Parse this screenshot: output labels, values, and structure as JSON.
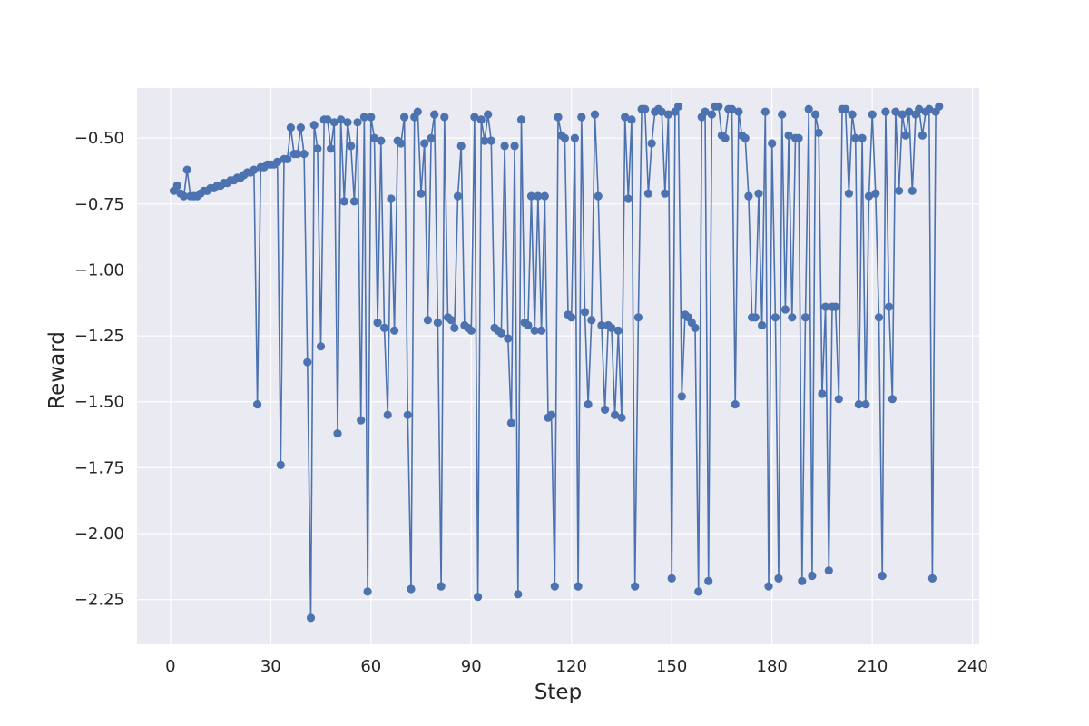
{
  "chart_data": {
    "type": "line",
    "title": "",
    "xlabel": "Step",
    "ylabel": "Reward",
    "xlim": [
      -10,
      242
    ],
    "ylim": [
      -2.42,
      -0.31
    ],
    "xticks": [
      0,
      30,
      60,
      90,
      120,
      150,
      180,
      210,
      240
    ],
    "yticks": [
      -2.25,
      -2.0,
      -1.75,
      -1.5,
      -1.25,
      -1.0,
      -0.75,
      -0.5
    ],
    "ytick_labels": [
      "−2.25",
      "−2.00",
      "−1.75",
      "−1.50",
      "−1.25",
      "−1.00",
      "−0.75",
      "−0.50"
    ],
    "grid": true,
    "marker": "circle",
    "colors": {
      "series": "#4c72b0",
      "plot_background": "#eaeaf2",
      "grid": "#ffffff"
    },
    "series": [
      {
        "x": [
          1,
          2,
          3,
          4,
          5,
          6,
          7,
          8,
          9,
          10,
          11,
          12,
          13,
          14,
          15,
          16,
          17,
          18,
          19,
          20,
          21,
          22,
          23,
          24,
          25,
          26,
          27,
          28,
          29,
          30,
          31,
          32,
          33,
          34,
          35,
          36,
          37,
          38,
          39,
          40,
          41,
          42,
          43,
          44,
          45,
          46,
          47,
          48,
          49,
          50,
          51,
          52,
          53,
          54,
          55,
          56,
          57,
          58,
          59,
          60,
          61,
          62,
          63,
          64,
          65,
          66,
          67,
          68,
          69,
          70,
          71,
          72,
          73,
          74,
          75,
          76,
          77,
          78,
          79,
          80,
          81,
          82,
          83,
          84,
          85,
          86,
          87,
          88,
          89,
          90,
          91,
          92,
          93,
          94,
          95,
          96,
          97,
          98,
          99,
          100,
          101,
          102,
          103,
          104,
          105,
          106,
          107,
          108,
          109,
          110,
          111,
          112,
          113,
          114,
          115,
          116,
          117,
          118,
          119,
          120,
          121,
          122,
          123,
          124,
          125,
          126,
          127,
          128,
          129,
          130,
          131,
          132,
          133,
          134,
          135,
          136,
          137,
          138,
          139,
          140,
          141,
          142,
          143,
          144,
          145,
          146,
          147,
          148,
          149,
          150,
          151,
          152,
          153,
          154,
          155,
          156,
          157,
          158,
          159,
          160,
          161,
          162,
          163,
          164,
          165,
          166,
          167,
          168,
          169,
          170,
          171,
          172,
          173,
          174,
          175,
          176,
          177,
          178,
          179,
          180,
          181,
          182,
          183,
          184,
          185,
          186,
          187,
          188,
          189,
          190,
          191,
          192,
          193,
          194,
          195,
          196,
          197,
          198,
          199,
          200,
          201,
          202,
          203,
          204,
          205,
          206,
          207,
          208,
          209,
          210,
          211,
          212,
          213,
          214,
          215,
          216,
          217,
          218,
          219,
          220,
          221,
          222,
          223,
          224,
          225,
          226,
          227,
          228,
          229,
          230
        ],
        "y": [
          -0.7,
          -0.68,
          -0.71,
          -0.72,
          -0.62,
          -0.72,
          -0.72,
          -0.72,
          -0.71,
          -0.7,
          -0.7,
          -0.69,
          -0.69,
          -0.68,
          -0.68,
          -0.67,
          -0.67,
          -0.66,
          -0.66,
          -0.65,
          -0.65,
          -0.64,
          -0.63,
          -0.63,
          -0.62,
          -1.51,
          -0.61,
          -0.61,
          -0.6,
          -0.6,
          -0.6,
          -0.59,
          -1.74,
          -0.58,
          -0.58,
          -0.46,
          -0.56,
          -0.56,
          -0.46,
          -0.56,
          -1.35,
          -2.32,
          -0.45,
          -0.54,
          -1.29,
          -0.43,
          -0.43,
          -0.54,
          -0.44,
          -1.62,
          -0.43,
          -0.74,
          -0.44,
          -0.53,
          -0.74,
          -0.44,
          -1.57,
          -0.42,
          -2.22,
          -0.42,
          -0.5,
          -1.2,
          -0.51,
          -1.22,
          -1.55,
          -0.73,
          -1.23,
          -0.51,
          -0.52,
          -0.42,
          -1.55,
          -2.21,
          -0.42,
          -0.4,
          -0.71,
          -0.52,
          -1.19,
          -0.5,
          -0.41,
          -1.2,
          -2.2,
          -0.42,
          -1.18,
          -1.19,
          -1.22,
          -0.72,
          -0.53,
          -1.21,
          -1.22,
          -1.23,
          -0.42,
          -2.24,
          -0.43,
          -0.51,
          -0.41,
          -0.51,
          -1.22,
          -1.23,
          -1.24,
          -0.53,
          -1.26,
          -1.58,
          -0.53,
          -2.23,
          -0.43,
          -1.2,
          -1.21,
          -0.72,
          -1.23,
          -0.72,
          -1.23,
          -0.72,
          -1.56,
          -1.55,
          -2.2,
          -0.42,
          -0.49,
          -0.5,
          -1.17,
          -1.18,
          -0.5,
          -2.2,
          -0.42,
          -1.16,
          -1.51,
          -1.19,
          -0.41,
          -0.72,
          -1.21,
          -1.53,
          -1.21,
          -1.22,
          -1.55,
          -1.23,
          -1.56,
          -0.42,
          -0.73,
          -0.43,
          -2.2,
          -1.18,
          -0.39,
          -0.39,
          -0.71,
          -0.52,
          -0.4,
          -0.39,
          -0.4,
          -0.71,
          -0.41,
          -2.17,
          -0.4,
          -0.38,
          -1.48,
          -1.17,
          -1.18,
          -1.2,
          -1.22,
          -2.22,
          -0.42,
          -0.4,
          -2.18,
          -0.41,
          -0.38,
          -0.38,
          -0.49,
          -0.5,
          -0.39,
          -0.39,
          -1.51,
          -0.4,
          -0.49,
          -0.5,
          -0.72,
          -1.18,
          -1.18,
          -0.71,
          -1.21,
          -0.4,
          -2.2,
          -0.52,
          -1.18,
          -2.17,
          -0.41,
          -1.15,
          -0.49,
          -1.18,
          -0.5,
          -0.5,
          -2.18,
          -1.18,
          -0.39,
          -2.16,
          -0.41,
          -0.48,
          -1.47,
          -1.14,
          -2.14,
          -1.14,
          -1.14,
          -1.49,
          -0.39,
          -0.39,
          -0.71,
          -0.41,
          -0.5,
          -1.51,
          -0.5,
          -1.51,
          -0.72,
          -0.41,
          -0.71,
          -1.18,
          -2.16,
          -0.4,
          -1.14,
          -1.49,
          -0.4,
          -0.7,
          -0.41,
          -0.49,
          -0.4,
          -0.7,
          -0.41,
          -0.39,
          -0.49,
          -0.4,
          -0.39,
          -2.17,
          -0.4,
          -0.38
        ]
      }
    ]
  }
}
